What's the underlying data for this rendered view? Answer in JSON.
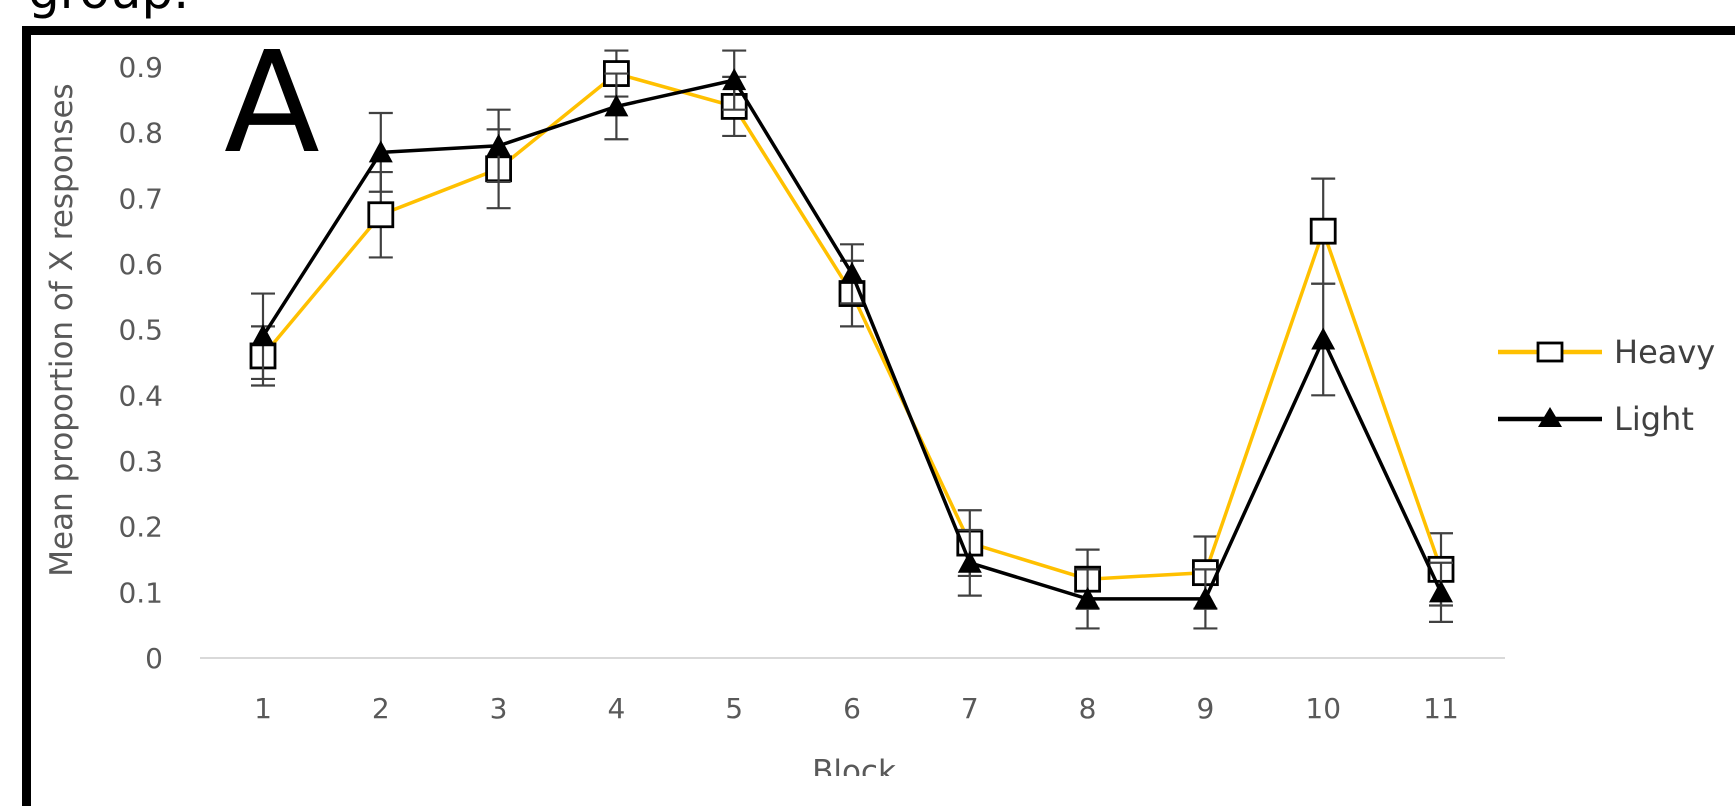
{
  "page": {
    "top_text": "group.",
    "panel_label": "A"
  },
  "chart_data": {
    "type": "line",
    "x": [
      1,
      2,
      3,
      4,
      5,
      6,
      7,
      8,
      9,
      10,
      11
    ],
    "xlabel": "Block",
    "ylabel": "Mean proportion of X responses",
    "ylim": [
      0,
      0.9
    ],
    "yticks": [
      "0",
      "0.1",
      "0.2",
      "0.3",
      "0.4",
      "0.5",
      "0.6",
      "0.7",
      "0.8",
      "0.9"
    ],
    "grid": false,
    "legend_position": "right",
    "series": [
      {
        "name": "Heavy",
        "color": "#FFC000",
        "marker": "open-square",
        "values": [
          0.46,
          0.675,
          0.745,
          0.89,
          0.84,
          0.555,
          0.175,
          0.12,
          0.13,
          0.65,
          0.135
        ],
        "errors": [
          0.045,
          0.065,
          0.06,
          0.035,
          0.045,
          0.05,
          0.05,
          0.045,
          0.055,
          0.08,
          0.055
        ]
      },
      {
        "name": "Light",
        "color": "#000000",
        "marker": "filled-triangle",
        "values": [
          0.49,
          0.77,
          0.78,
          0.84,
          0.88,
          0.585,
          0.145,
          0.09,
          0.09,
          0.485,
          0.1
        ],
        "errors": [
          0.065,
          0.06,
          0.055,
          0.05,
          0.045,
          0.045,
          0.05,
          0.045,
          0.045,
          0.085,
          0.045
        ]
      }
    ]
  }
}
